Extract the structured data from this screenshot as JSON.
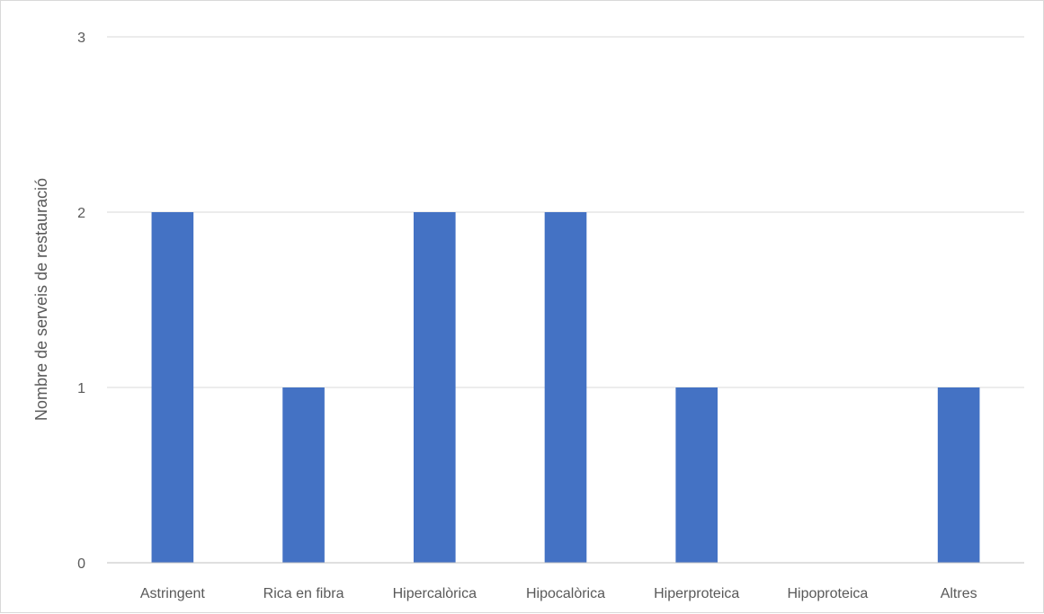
{
  "chart_data": {
    "type": "bar",
    "title": "",
    "xlabel": "",
    "ylabel": "Nombre de serveis de restauració",
    "categories": [
      "Astringent",
      "Rica en fibra",
      "Hipercalòrica",
      "Hipocalòrica",
      "Hiperproteica",
      "Hipoproteica",
      "Altres"
    ],
    "values": [
      2,
      1,
      2,
      2,
      1,
      0,
      1
    ],
    "ylim": [
      0,
      3
    ],
    "yticks": [
      0,
      1,
      2,
      3
    ],
    "grid": true,
    "legend": "none",
    "colors": {
      "bar": "#4472C4",
      "grid": "#d9d9d9",
      "axis": "#bfbfbf",
      "text": "#595959"
    }
  }
}
